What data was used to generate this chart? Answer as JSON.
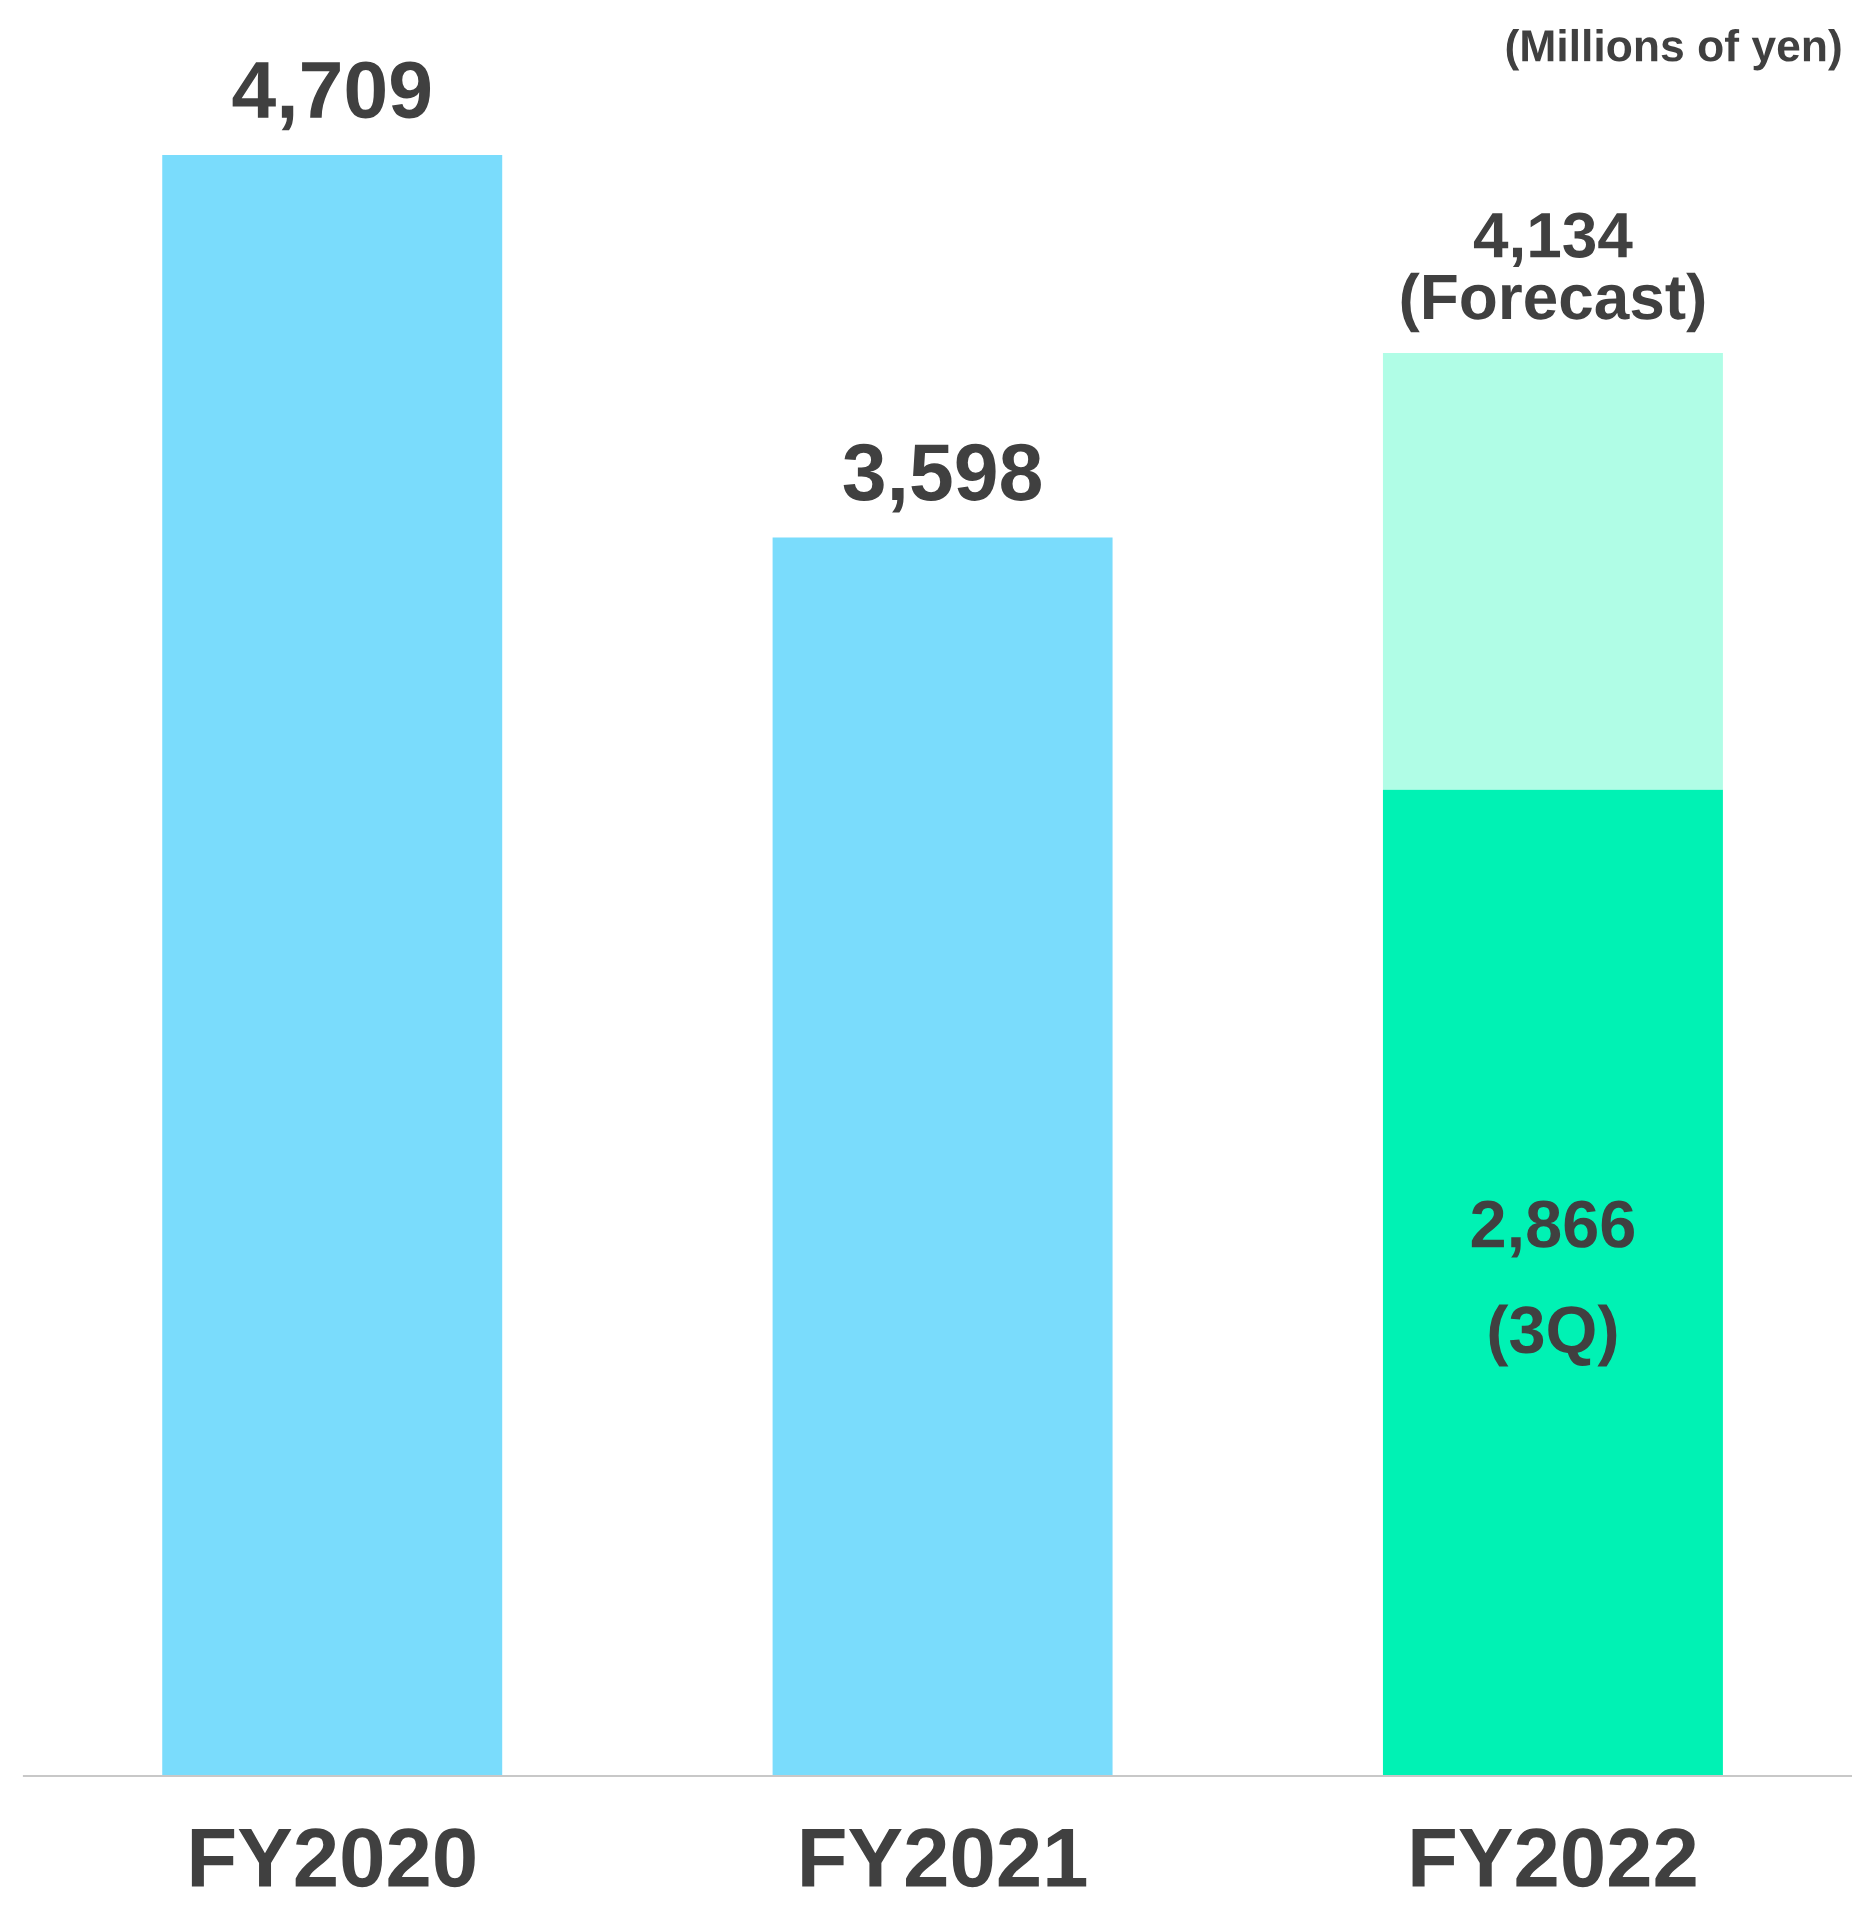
{
  "chart_data": {
    "type": "bar",
    "stacked": true,
    "categories": [
      "FY2020",
      "FY2021",
      "FY2022"
    ],
    "series": [
      {
        "colors": [
          "#7adcfc",
          "#7adcfc",
          "#00f2b4"
        ],
        "values": [
          4709,
          3598,
          2866
        ],
        "value_labels": [
          "4,709",
          "3,598",
          "2,866\n(3Q)"
        ]
      },
      {
        "colors": [
          "#b0fde6",
          "#b0fde6",
          "#b0fde6"
        ],
        "values": [
          null,
          null,
          1268
        ],
        "value_labels": [
          null,
          null,
          null
        ]
      }
    ],
    "totals": [
      null,
      null,
      "4,134\n(Forecast)"
    ],
    "tick_labels": "x",
    "grid": false,
    "legend": false,
    "annotations": [
      "(Millions of yen)"
    ]
  }
}
